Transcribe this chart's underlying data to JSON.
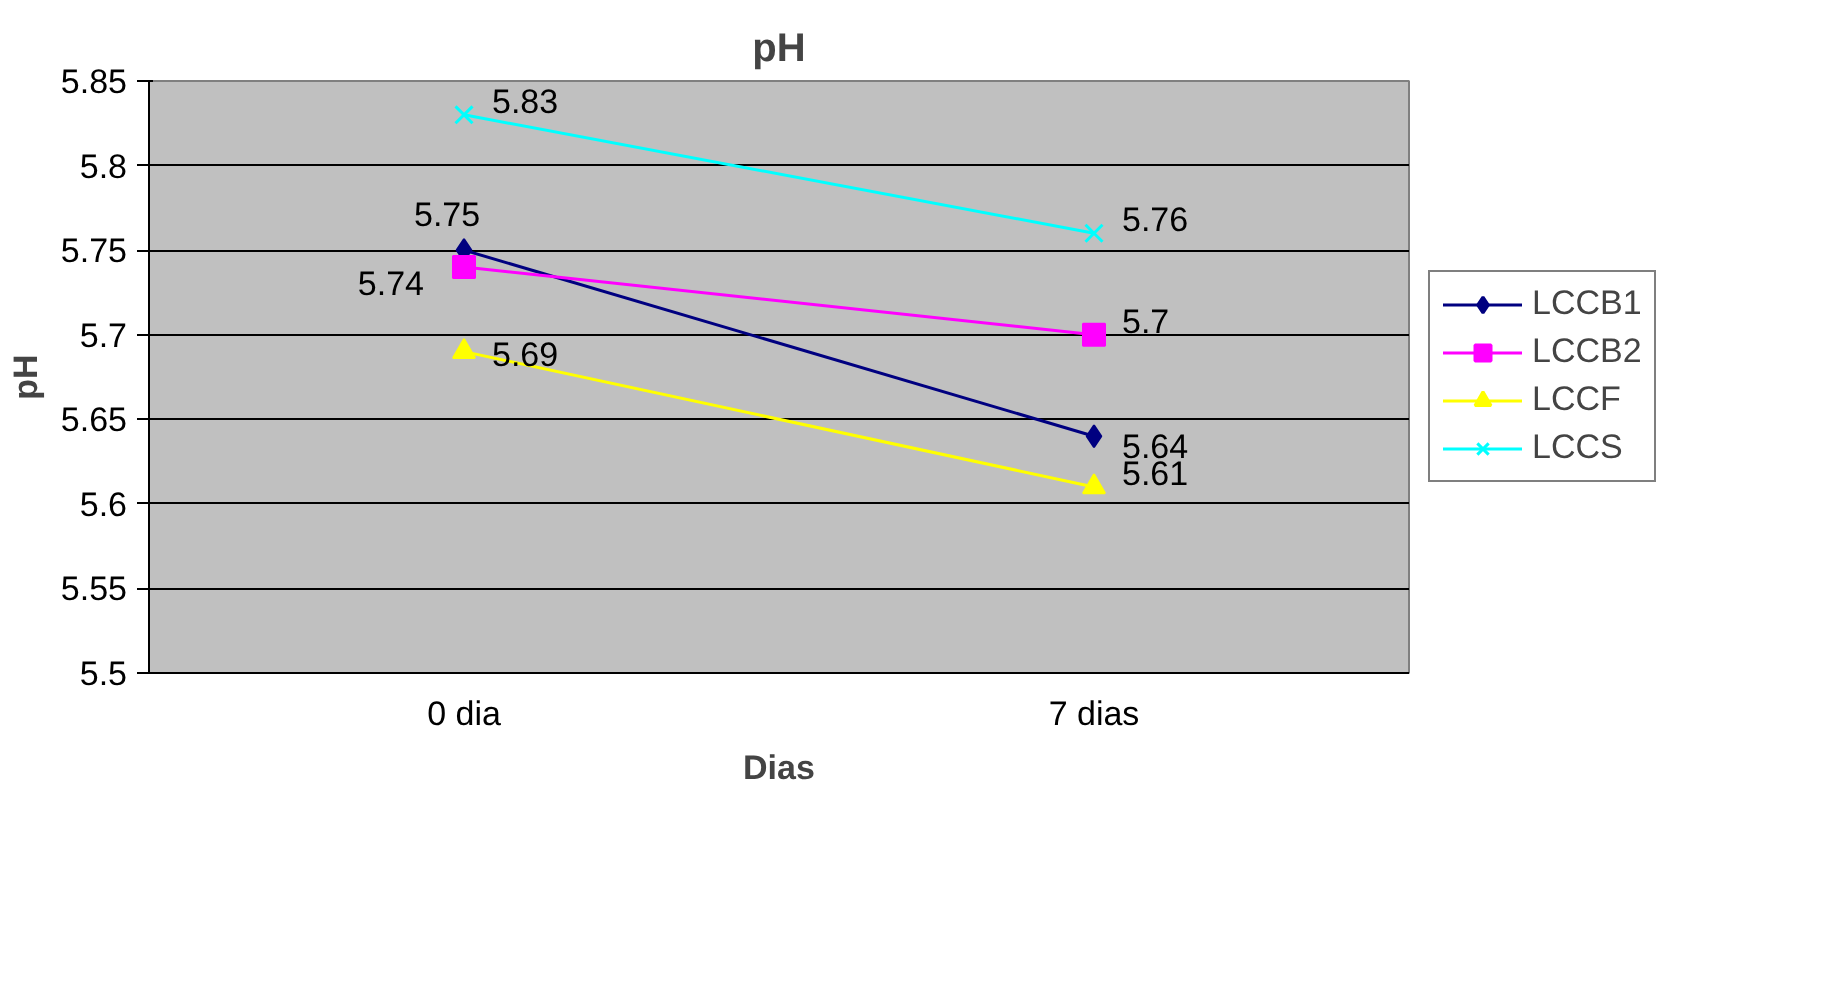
{
  "chart_data": {
    "type": "line",
    "title": "pH",
    "xlabel": "Dias",
    "ylabel": "pH",
    "categories": [
      "0 dia",
      "7 dias"
    ],
    "series": [
      {
        "name": "LCCB1",
        "color": "#000080",
        "marker": "diamond",
        "values": [
          5.75,
          5.64
        ]
      },
      {
        "name": "LCCB2",
        "color": "#ff00ff",
        "marker": "square",
        "values": [
          5.74,
          5.7
        ]
      },
      {
        "name": "LCCF",
        "color": "#ffff00",
        "marker": "triangle",
        "values": [
          5.69,
          5.61
        ]
      },
      {
        "name": "LCCS",
        "color": "#00ffff",
        "marker": "cross",
        "values": [
          5.83,
          5.76
        ]
      }
    ],
    "ylim": [
      5.5,
      5.85
    ],
    "yticks": [
      5.5,
      5.55,
      5.6,
      5.65,
      5.7,
      5.75,
      5.8,
      5.85
    ],
    "grid": "y",
    "legend": "right",
    "data_labels": true
  }
}
